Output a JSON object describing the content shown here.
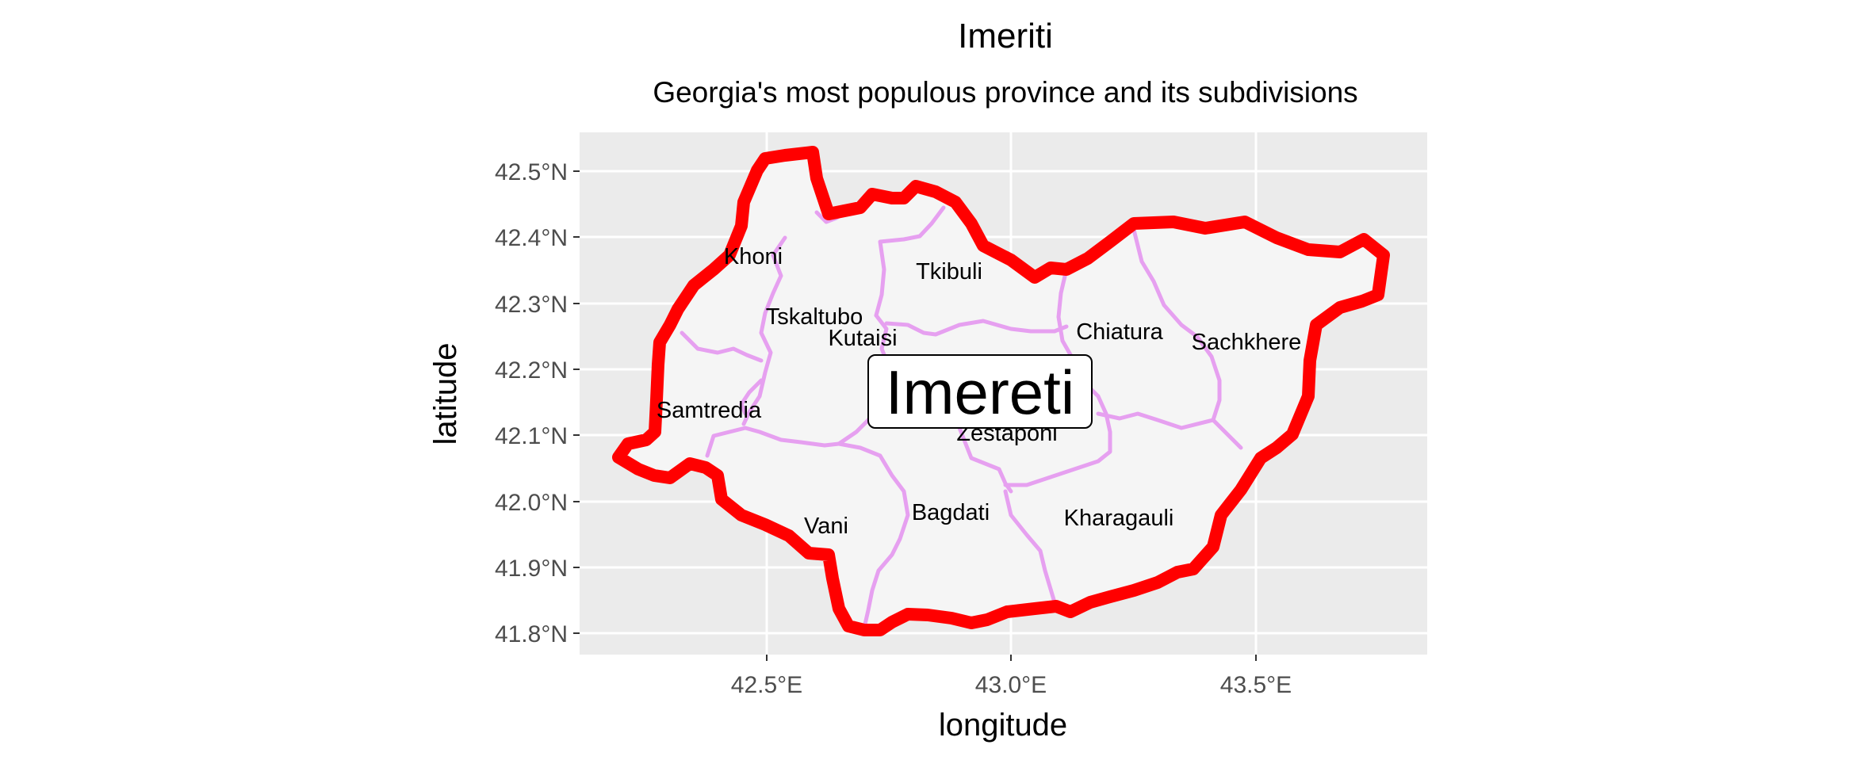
{
  "title": "Imeriti",
  "subtitle": "Georgia's most populous province and its subdivisions",
  "axes": {
    "xlabel": "longitude",
    "ylabel": "latitude",
    "x_ticks": [
      "42.5°E",
      "43.0°E",
      "43.5°E"
    ],
    "y_ticks": [
      "42.5°N",
      "42.4°N",
      "42.3°N",
      "42.2°N",
      "42.1°N",
      "42.0°N",
      "41.9°N",
      "41.8°N"
    ]
  },
  "region_label": "Imereti",
  "places": [
    {
      "name": "Khoni"
    },
    {
      "name": "Tkibuli"
    },
    {
      "name": "Tskaltubo"
    },
    {
      "name": "Kutaisi"
    },
    {
      "name": "Chiatura"
    },
    {
      "name": "Sachkhere"
    },
    {
      "name": "Samtredia"
    },
    {
      "name": "Zestaponi"
    },
    {
      "name": "Vani"
    },
    {
      "name": "Bagdati"
    },
    {
      "name": "Kharagauli"
    }
  ],
  "colors": {
    "panel_bg": "#ebebeb",
    "grid": "#ffffff",
    "region_fill": "#f5f5f5",
    "boundary": "#ff0000",
    "subdivision_border": "#e6a0f0"
  }
}
